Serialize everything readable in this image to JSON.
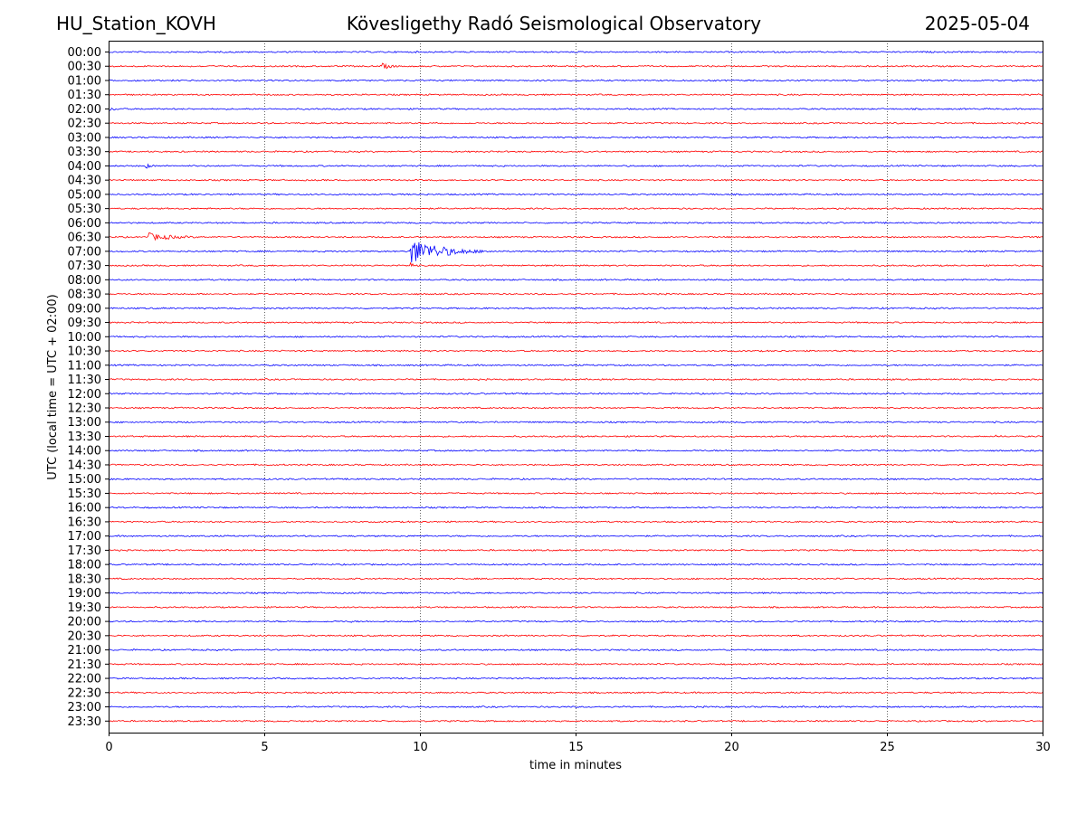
{
  "header": {
    "station": "HU_Station_KOVH",
    "observatory": "Kövesligethy Radó Seismological Observatory",
    "date": "2025-05-04"
  },
  "chart_data": {
    "type": "line",
    "title": "Kövesligethy Radó Seismological Observatory",
    "xlabel": "time in minutes",
    "ylabel": "UTC (local time = UTC + 02:00)",
    "xlim": [
      0,
      30
    ],
    "x_ticks": [
      0,
      5,
      10,
      15,
      20,
      25,
      30
    ],
    "x_tick_labels": [
      "0",
      "5",
      "10",
      "15",
      "20",
      "25",
      "30"
    ],
    "grid": "vertical dotted lines at x ticks",
    "trace_colors": [
      "#0000ff",
      "#ff0000"
    ],
    "rows": [
      "00:00",
      "00:30",
      "01:00",
      "01:30",
      "02:00",
      "02:30",
      "03:00",
      "03:30",
      "04:00",
      "04:30",
      "05:00",
      "05:30",
      "06:00",
      "06:30",
      "07:00",
      "07:30",
      "08:00",
      "08:30",
      "09:00",
      "09:30",
      "10:00",
      "10:30",
      "11:00",
      "11:30",
      "12:00",
      "12:30",
      "13:00",
      "13:30",
      "14:00",
      "14:30",
      "15:00",
      "15:30",
      "16:00",
      "16:30",
      "17:00",
      "17:30",
      "18:00",
      "18:30",
      "19:00",
      "19:30",
      "20:00",
      "20:30",
      "21:00",
      "21:30",
      "22:00",
      "22:30",
      "23:00",
      "23:30"
    ],
    "events": [
      {
        "row": "00:30",
        "start_min": 8.8,
        "duration_min": 1.2,
        "amplitude": 0.45
      },
      {
        "row": "01:30",
        "start_min": 29.85,
        "duration_min": 0.15,
        "amplitude": 0.2
      },
      {
        "row": "02:00",
        "start_min": 0.0,
        "duration_min": 2.2,
        "amplitude": 0.22
      },
      {
        "row": "02:30",
        "start_min": 10.5,
        "duration_min": 1.2,
        "amplitude": 0.18
      },
      {
        "row": "04:00",
        "start_min": 1.2,
        "duration_min": 0.8,
        "amplitude": 0.35
      },
      {
        "row": "06:30",
        "start_min": 1.2,
        "duration_min": 3.2,
        "amplitude": 0.6
      },
      {
        "row": "07:00",
        "start_min": 9.7,
        "duration_min": 3.2,
        "amplitude": 1.9
      },
      {
        "row": "07:30",
        "start_min": 9.7,
        "duration_min": 0.5,
        "amplitude": 0.5
      },
      {
        "row": "13:00",
        "start_min": 0.8,
        "duration_min": 0.4,
        "amplitude": 0.25
      },
      {
        "row": "13:30",
        "start_min": 28.5,
        "duration_min": 1.5,
        "amplitude": 0.18
      },
      {
        "row": "15:00",
        "start_min": 8.0,
        "duration_min": 0.3,
        "amplitude": 0.25
      },
      {
        "row": "17:00",
        "start_min": 15.3,
        "duration_min": 0.4,
        "amplitude": 0.22
      },
      {
        "row": "20:00",
        "start_min": 7.8,
        "duration_min": 0.3,
        "amplitude": 0.22
      },
      {
        "row": "21:30",
        "start_min": 26.3,
        "duration_min": 0.4,
        "amplitude": 0.2
      }
    ]
  }
}
